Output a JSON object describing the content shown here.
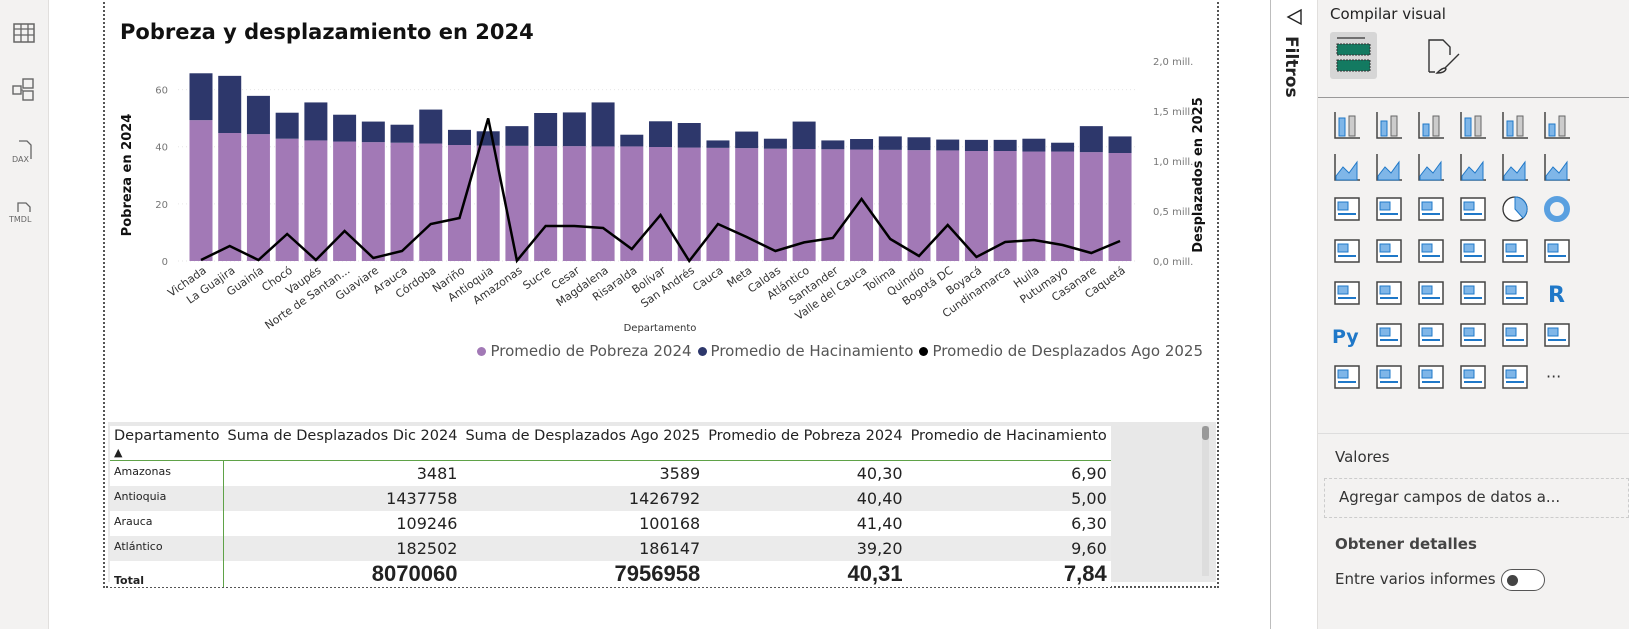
{
  "rail": {
    "icons": [
      "table-view-icon",
      "model-view-icon",
      "dax-query-icon",
      "tmdl-view-icon"
    ],
    "dax_label": "DAX",
    "tmdl_label": "TMDL"
  },
  "visual": {
    "title": "Pobreza y desplazamiento en 2024",
    "legend": [
      "Promedio de Pobreza 2024",
      "Promedio de Hacinamiento",
      "Promedio de Desplazados Ago 2025"
    ]
  },
  "chart_data": {
    "type": "bar",
    "stacked": true,
    "title": "Pobreza y desplazamiento en 2024",
    "xlabel": "Departamento",
    "ylabel": "Pobreza en 2024",
    "y2label": "Desplazados en 2025",
    "ylim": [
      0,
      70
    ],
    "y_ticks": [
      "0",
      "20",
      "40",
      "60"
    ],
    "y2lim": [
      0,
      2000000
    ],
    "y2_ticks": [
      "0,0 mill.",
      "0,5 mill.",
      "1,0 mill.",
      "1,5 mill.",
      "2,0 mill."
    ],
    "grid": true,
    "legend_position": "bottom-right",
    "categories": [
      "Vichada",
      "La Guajira",
      "Guainía",
      "Chocó",
      "Vaupés",
      "Norte de Santan...",
      "Guaviare",
      "Arauca",
      "Córdoba",
      "Nariño",
      "Antioquia",
      "Amazonas",
      "Sucre",
      "Cesar",
      "Magdalena",
      "Risaralda",
      "Bolívar",
      "San Andrés",
      "Cauca",
      "Meta",
      "Caldas",
      "Atlántico",
      "Santander",
      "Valle del Cauca",
      "Tolima",
      "Quindío",
      "Bogotá DC",
      "Boyacá",
      "Cundinamarca",
      "Huila",
      "Putumayo",
      "Casanare",
      "Caquetá"
    ],
    "series": [
      {
        "name": "Promedio de Pobreza 2024",
        "kind": "bar",
        "axis": "left",
        "color": "#a279b6",
        "values": [
          49.3,
          44.8,
          44.4,
          42.8,
          42.2,
          41.8,
          41.6,
          41.4,
          41.1,
          40.6,
          40.4,
          40.3,
          40.2,
          40.2,
          40.1,
          40.1,
          39.9,
          39.7,
          39.6,
          39.5,
          39.3,
          39.2,
          39.1,
          39.0,
          38.9,
          38.8,
          38.7,
          38.5,
          38.5,
          38.3,
          38.3,
          38.1,
          37.8
        ]
      },
      {
        "name": "Promedio de Hacinamiento",
        "kind": "bar",
        "axis": "left",
        "color": "#2d376b",
        "values": [
          16.4,
          20.0,
          13.4,
          9.1,
          13.3,
          9.4,
          7.2,
          6.3,
          11.9,
          5.3,
          5.0,
          6.9,
          11.6,
          11.8,
          15.4,
          4.1,
          9.0,
          8.6,
          2.6,
          5.8,
          3.5,
          9.6,
          3.1,
          3.7,
          4.7,
          4.5,
          3.8,
          3.9,
          3.9,
          4.5,
          3.1,
          9.1,
          5.8
        ]
      },
      {
        "name": "Promedio de Desplazados Ago 2025",
        "kind": "line",
        "axis": "right",
        "color": "#000000",
        "values": [
          10000,
          150000,
          10000,
          270000,
          10000,
          300000,
          30000,
          100168,
          370000,
          430000,
          1426792,
          3589,
          350000,
          350000,
          330000,
          120000,
          460000,
          0,
          370000,
          240000,
          100000,
          186147,
          230000,
          620000,
          220000,
          50000,
          360000,
          40000,
          190000,
          210000,
          160000,
          80000,
          200000
        ]
      }
    ]
  },
  "table": {
    "headers": [
      "Departamento",
      "Suma de Desplazados Dic 2024",
      "Suma de Desplazados Ago 2025",
      "Promedio de Pobreza 2024",
      "Promedio de Hacinamiento"
    ],
    "sort_indicator": "▲",
    "rows": [
      [
        "Amazonas",
        "3481",
        "3589",
        "40,30",
        "6,90"
      ],
      [
        "Antioquia",
        "1437758",
        "1426792",
        "40,40",
        "5,00"
      ],
      [
        "Arauca",
        "109246",
        "100168",
        "41,40",
        "6,30"
      ],
      [
        "Atlántico",
        "182502",
        "186147",
        "39,20",
        "9,60"
      ]
    ],
    "total": [
      "Total",
      "8070060",
      "7956958",
      "40,31",
      "7,84"
    ]
  },
  "filters": {
    "label": "Filtros"
  },
  "pane": {
    "title": "Compilar visual",
    "visual_icons": [
      "stacked-bar-icon",
      "stacked-column-icon",
      "clustered-bar-icon",
      "clustered-column-icon",
      "100-stacked-bar-icon",
      "100-stacked-column-icon",
      "line-chart-icon",
      "area-chart-icon",
      "stacked-area-icon",
      "100-stacked-area-icon",
      "line-clustered-column-icon",
      "line-stacked-column-icon",
      "ribbon-chart-icon",
      "waterfall-icon",
      "funnel-icon",
      "scatter-icon",
      "pie-icon",
      "donut-icon",
      "treemap-icon",
      "map-icon",
      "filled-map-icon",
      "azure-map-icon",
      "gauge-icon",
      "card-icon",
      "multi-row-card-icon",
      "kpi-icon",
      "slicer-icon",
      "table-icon",
      "matrix-icon",
      "r-visual-icon",
      "python-visual-icon",
      "key-influencers-icon",
      "decomposition-tree-icon",
      "qa-icon",
      "narrative-icon",
      "paginated-report-icon",
      "goals-icon",
      "power-apps-icon",
      "power-automate-icon",
      "image-icon",
      "arcgis-icon",
      "more-icon"
    ],
    "r_label": "R",
    "py_label": "Py",
    "more_label": "···",
    "values_label": "Valores",
    "add_field_placeholder": "Agregar campos de datos a...",
    "details_label": "Obtener detalles",
    "cross_report_label": "Entre varios informes",
    "cross_report_on": false
  }
}
